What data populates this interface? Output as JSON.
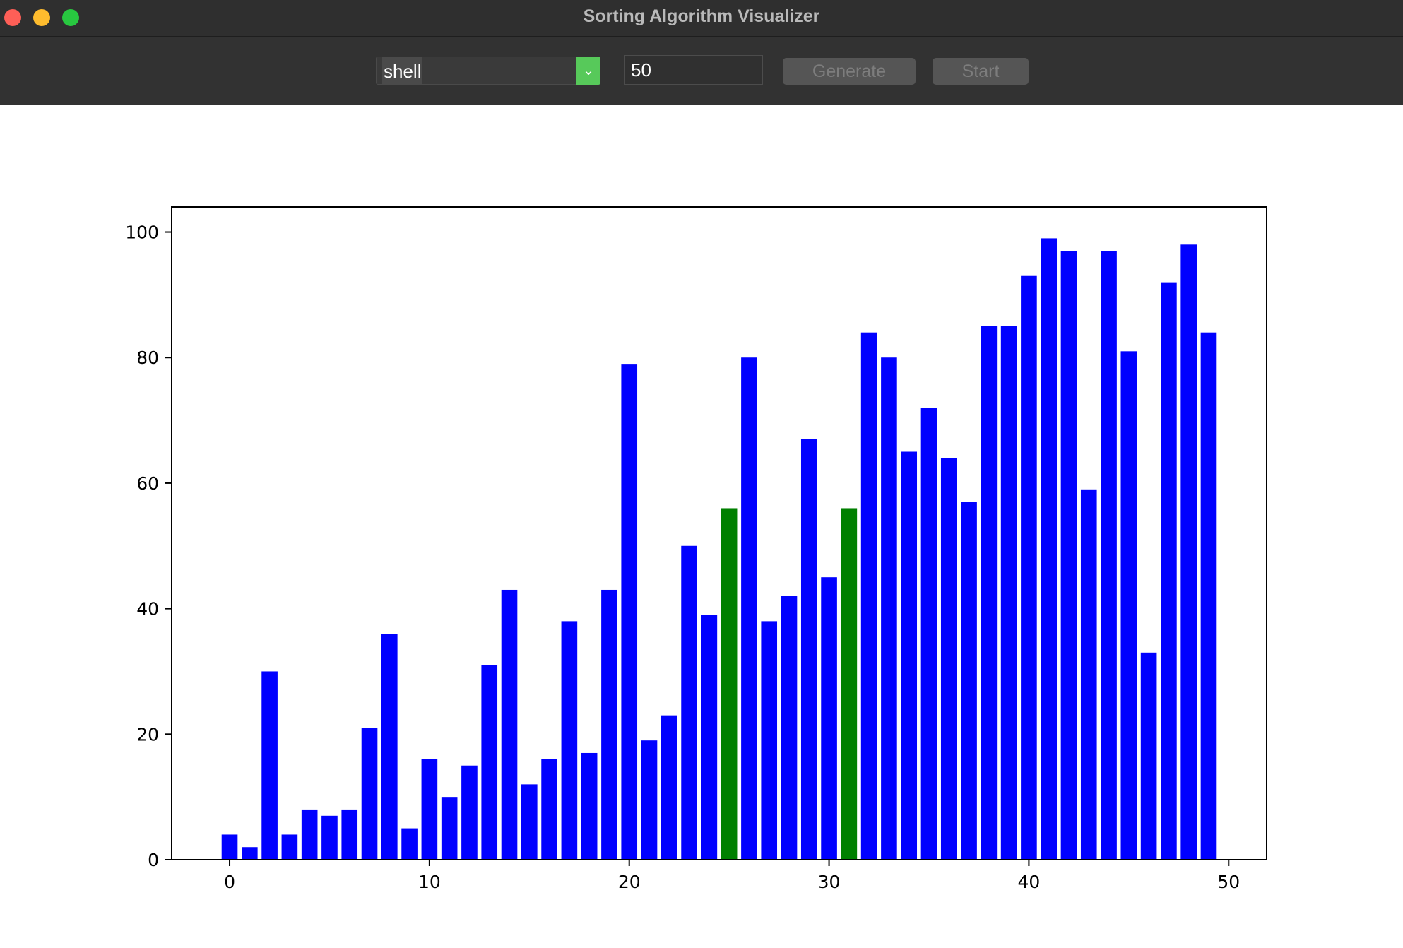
{
  "window": {
    "title": "Sorting Algorithm Visualizer"
  },
  "toolbar": {
    "algorithm_value": "shell",
    "size_value": "50",
    "generate_label": "Generate",
    "start_label": "Start"
  },
  "colors": {
    "bar_default": "#0000ff",
    "bar_highlight": "#008000",
    "select_arrow_bg": "#57c95a"
  },
  "chart_data": {
    "type": "bar",
    "title": "",
    "xlabel": "",
    "ylabel": "",
    "x": [
      0,
      1,
      2,
      3,
      4,
      5,
      6,
      7,
      8,
      9,
      10,
      11,
      12,
      13,
      14,
      15,
      16,
      17,
      18,
      19,
      20,
      21,
      22,
      23,
      24,
      25,
      26,
      27,
      28,
      29,
      30,
      31,
      32,
      33,
      34,
      35,
      36,
      37,
      38,
      39,
      40,
      41,
      42,
      43,
      44,
      45,
      46,
      47,
      48,
      49
    ],
    "values": [
      4,
      2,
      30,
      4,
      8,
      7,
      8,
      21,
      36,
      5,
      16,
      10,
      15,
      31,
      43,
      12,
      16,
      38,
      17,
      43,
      79,
      19,
      23,
      50,
      39,
      56,
      80,
      38,
      42,
      67,
      45,
      56,
      84,
      80,
      65,
      72,
      64,
      57,
      85,
      85,
      93,
      99,
      97,
      59,
      97,
      81,
      33,
      92,
      98,
      84
    ],
    "highlighted_indices": [
      25,
      31
    ],
    "xlim": [
      -2.9,
      51.9
    ],
    "ylim": [
      0,
      104
    ],
    "xticks": [
      0,
      10,
      20,
      30,
      40,
      50
    ],
    "yticks": [
      0,
      20,
      40,
      60,
      80,
      100
    ],
    "grid": false
  }
}
